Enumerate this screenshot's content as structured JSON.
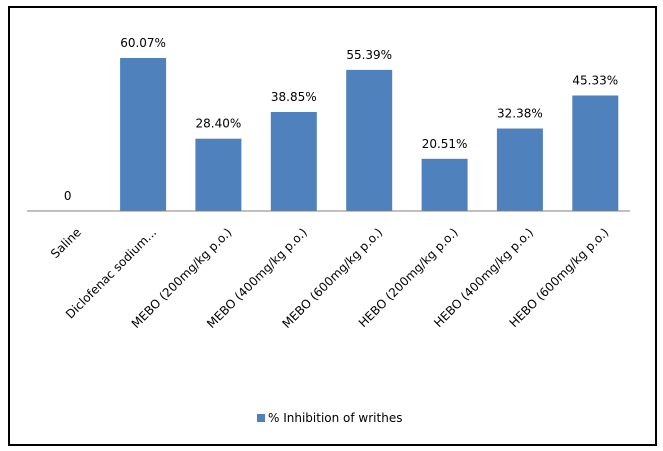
{
  "chart_data": {
    "type": "bar",
    "categories": [
      "Saline",
      "Diclofenac sodium...",
      "MEBO (200mg/kg p.o.)",
      "MEBO (400mg/kg p.o.)",
      "MEBO (600mg/kg p.o.)",
      "HEBO (200mg/kg p.o.)",
      "HEBO (400mg/kg p.o.)",
      "HEBO (600mg/kg p.o.)"
    ],
    "series": [
      {
        "name": "% Inhibition of writhes",
        "values": [
          0,
          60.07,
          28.4,
          38.85,
          55.39,
          20.51,
          32.38,
          45.33
        ],
        "labels": [
          "0",
          "60.07%",
          "28.40%",
          "38.85%",
          "55.39%",
          "20.51%",
          "32.38%",
          "45.33%"
        ]
      }
    ],
    "colors": {
      "bar": "#4F81BD",
      "axis": "#808080",
      "frame": "#000000"
    },
    "ylim": [
      0,
      70
    ],
    "grid": false,
    "legend": "bottom"
  }
}
